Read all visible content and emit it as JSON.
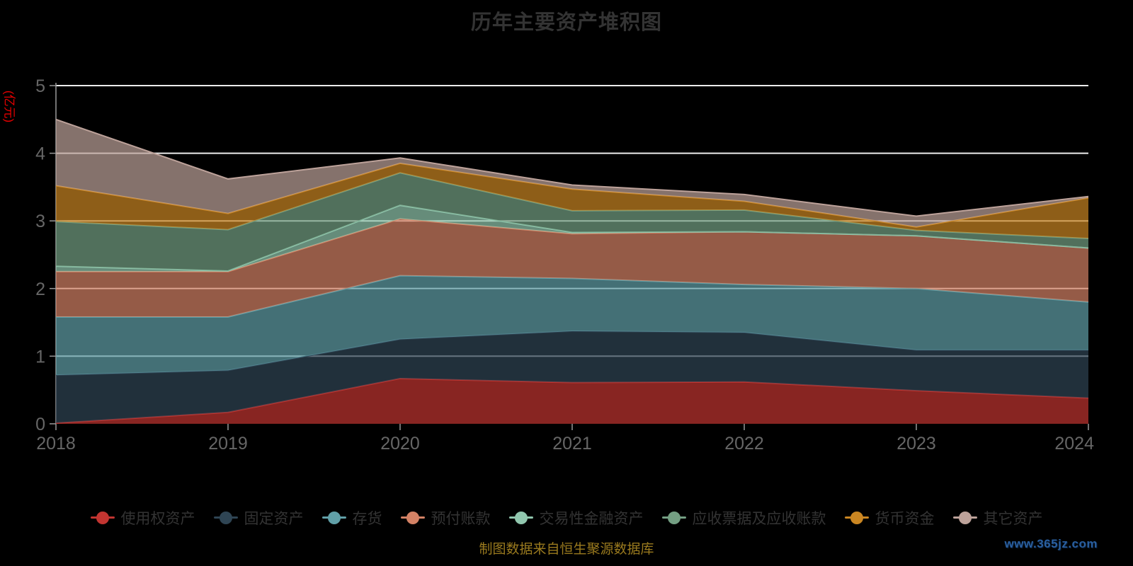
{
  "title": "历年主要资产堆积图",
  "y_axis_name": "(亿元)",
  "footer": {
    "caption": "制图数据来自恒生聚源数据库",
    "watermark": "www.365jz.com"
  },
  "colors": {
    "background": "#000000",
    "title_text": "#333333",
    "axis_label": "#666666",
    "axis_line": "#999999",
    "grid_line": "#ececec",
    "legend_text": "#333333",
    "y_axis_name_text": "#e60000",
    "caption_text": "#9a7a1e",
    "watermark_text": "#2a5f9f"
  },
  "chart_data": {
    "type": "area",
    "stacked": true,
    "title": "历年主要资产堆积图",
    "ylabel": "(亿元)",
    "ylim": [
      0,
      5
    ],
    "yticks": [
      0,
      1,
      2,
      3,
      4,
      5
    ],
    "grid": true,
    "legend_position": "bottom",
    "area_opacity": 0.7,
    "categories": [
      "2018",
      "2019",
      "2020",
      "2021",
      "2022",
      "2023",
      "2024"
    ],
    "series": [
      {
        "name": "使用权资产",
        "color": "#c23531",
        "values": [
          0.01,
          0.17,
          0.67,
          0.61,
          0.62,
          0.49,
          0.38
        ]
      },
      {
        "name": "固定资产",
        "color": "#2f4554",
        "values": [
          0.71,
          0.62,
          0.58,
          0.76,
          0.73,
          0.6,
          0.71
        ]
      },
      {
        "name": "存货",
        "color": "#61a0a8",
        "values": [
          0.86,
          0.79,
          0.94,
          0.78,
          0.71,
          0.91,
          0.71
        ]
      },
      {
        "name": "预付账款",
        "color": "#d48265",
        "values": [
          0.67,
          0.67,
          0.84,
          0.66,
          0.78,
          0.78,
          0.8
        ]
      },
      {
        "name": "交易性金融资产",
        "color": "#91c7ae",
        "values": [
          0.08,
          0.01,
          0.2,
          0.02,
          0.0,
          0.0,
          0.0
        ]
      },
      {
        "name": "应收票据及应收账款",
        "color": "#749f83",
        "values": [
          0.66,
          0.61,
          0.48,
          0.32,
          0.32,
          0.08,
          0.14
        ]
      },
      {
        "name": "货币资金",
        "color": "#ca8622",
        "values": [
          0.53,
          0.24,
          0.14,
          0.32,
          0.13,
          0.05,
          0.6
        ]
      },
      {
        "name": "其它资产",
        "color": "#bda29a",
        "values": [
          0.98,
          0.51,
          0.08,
          0.06,
          0.1,
          0.16,
          0.02
        ]
      }
    ]
  }
}
